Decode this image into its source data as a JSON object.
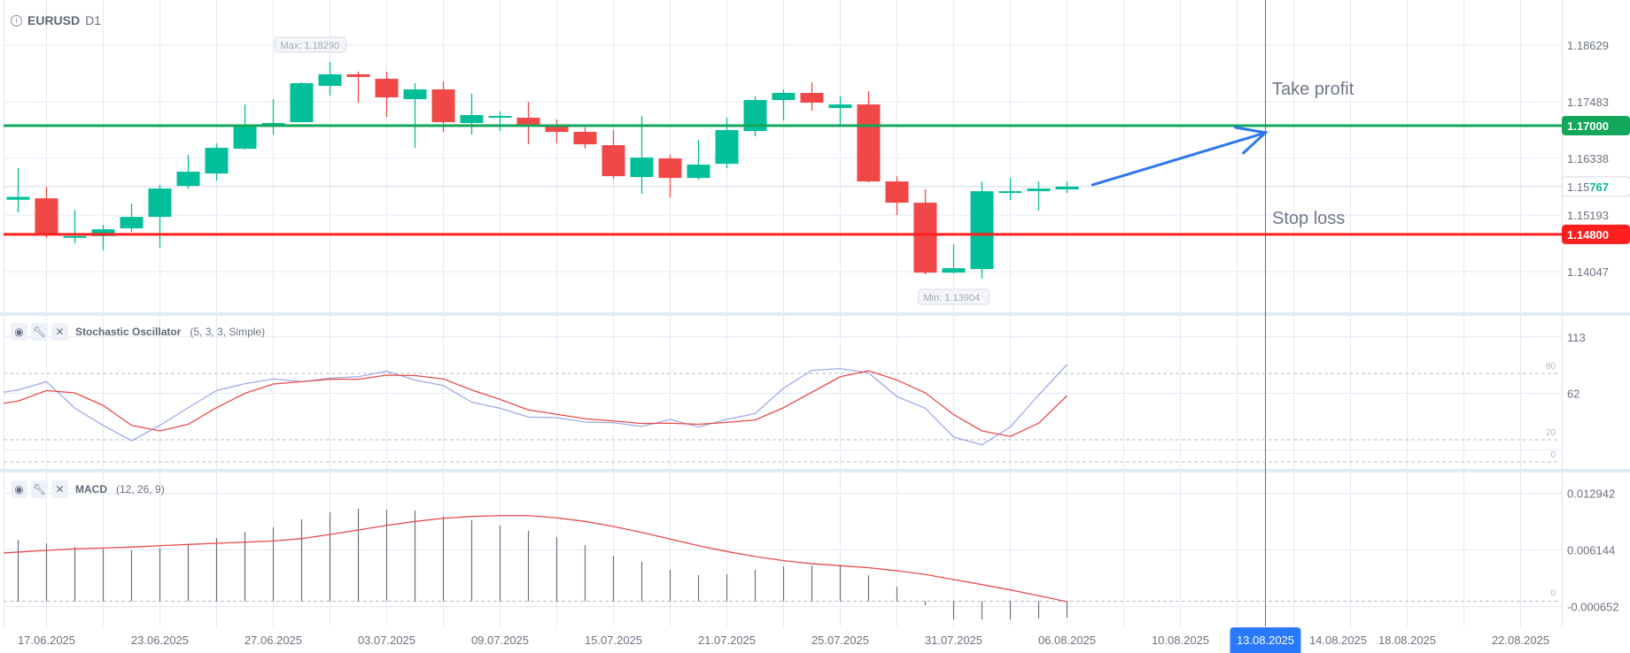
{
  "header": {
    "symbol": "EURUSD",
    "timeframe": "D1",
    "icon": "info-icon"
  },
  "colors": {
    "bull": "#02bf99",
    "bear": "#f04747",
    "take_profit": "#12a75a",
    "stop_loss": "#ff1f1f",
    "arrow": "#2b78f0",
    "crosshair": "#2f6df0",
    "stoch_k": "#9eaae6",
    "stoch_d": "#e84c4c",
    "macd_bars": "#6b7080",
    "signal": "#e84c4c",
    "grid": "#e3e9f5",
    "separator": "#e2e9f7"
  },
  "chart_data": {
    "type": "candlestick",
    "title": "EURUSD D1",
    "ylim": [
      1.13223,
      1.19542
    ],
    "candles": [
      [
        1.15501,
        1.16139,
        1.15244,
        1.1556
      ],
      [
        1.1553,
        1.15763,
        1.1473,
        1.14826
      ],
      [
        1.14742,
        1.15298,
        1.14617,
        1.14766
      ],
      [
        1.14766,
        1.14993,
        1.1448,
        1.14904
      ],
      [
        1.14922,
        1.15423,
        1.1485,
        1.15154
      ],
      [
        1.15154,
        1.15799,
        1.14533,
        1.15727
      ],
      [
        1.15781,
        1.16408,
        1.15727,
        1.16068
      ],
      [
        1.16032,
        1.16641,
        1.15889,
        1.16551
      ],
      [
        1.16533,
        1.17429,
        1.16516,
        1.16975
      ],
      [
        1.16975,
        1.17536,
        1.1682,
        1.17053
      ],
      [
        1.17071,
        1.17877,
        1.17071,
        1.17859
      ],
      [
        1.17805,
        1.1829,
        1.17608,
        1.18038
      ],
      [
        1.18038,
        1.18092,
        1.17465,
        1.17984
      ],
      [
        1.17948,
        1.18092,
        1.17178,
        1.17572
      ],
      [
        1.17536,
        1.17859,
        1.16551,
        1.17733
      ],
      [
        1.17733,
        1.17895,
        1.16874,
        1.17071
      ],
      [
        1.17053,
        1.17644,
        1.1682,
        1.17214
      ],
      [
        1.17178,
        1.17286,
        1.16892,
        1.17196
      ],
      [
        1.1716,
        1.17483,
        1.16623,
        1.16999
      ],
      [
        1.16999,
        1.17124,
        1.16641,
        1.16874
      ],
      [
        1.16874,
        1.16963,
        1.16533,
        1.16623
      ],
      [
        1.16605,
        1.1691,
        1.15924,
        1.15978
      ],
      [
        1.1596,
        1.17196,
        1.1562,
        1.16354
      ],
      [
        1.16336,
        1.16408,
        1.15548,
        1.15942
      ],
      [
        1.15942,
        1.16713,
        1.15907,
        1.16211
      ],
      [
        1.16229,
        1.1716,
        1.16139,
        1.1691
      ],
      [
        1.16892,
        1.1759,
        1.16784,
        1.17518
      ],
      [
        1.17518,
        1.17733,
        1.17107,
        1.17662
      ],
      [
        1.17662,
        1.17877,
        1.17304,
        1.17465
      ],
      [
        1.17357,
        1.1759,
        1.17017,
        1.17429
      ],
      [
        1.17429,
        1.17698,
        1.15853,
        1.15871
      ],
      [
        1.15871,
        1.15978,
        1.1519,
        1.15441
      ],
      [
        1.15441,
        1.1571,
        1.1399,
        1.14026
      ],
      [
        1.14026,
        1.14599,
        1.14008,
        1.14116
      ],
      [
        1.14098,
        1.15871,
        1.13904,
        1.15674
      ],
      [
        1.15656,
        1.15942,
        1.15495,
        1.15674
      ],
      [
        1.15674,
        1.15871,
        1.1528,
        1.15727
      ],
      [
        1.1571,
        1.15871,
        1.15638,
        1.15767
      ]
    ],
    "price_ticks": [
      {
        "value": 1.18629,
        "label": "1.18629"
      },
      {
        "value": 1.17483,
        "label": "1.17483"
      },
      {
        "value": 1.16338,
        "label": "1.16338"
      },
      {
        "value": 1.15193,
        "label": "1.15193"
      },
      {
        "value": 1.14047,
        "label": "1.14047"
      }
    ],
    "max_marker": {
      "index": 11,
      "value": 1.1829,
      "label": "Max: 1.18290"
    },
    "min_marker": {
      "index": 34,
      "value": 1.13904,
      "label": "Min: 1.13904"
    },
    "current_price": {
      "value": 1.15767,
      "label_prefix": "1.15",
      "label_suffix": "767"
    },
    "levels": [
      {
        "name": "take-profit",
        "text": "Take profit",
        "value": 1.17,
        "label": "1.17000"
      },
      {
        "name": "stop-loss",
        "text": "Stop loss",
        "value": 1.148,
        "label": "1.14800"
      }
    ],
    "arrow": {
      "from": {
        "index": 37.9,
        "value": 1.15801
      },
      "to": {
        "index": 44,
        "value": 1.16857
      }
    },
    "crosshair": {
      "index": 44,
      "label": "13.08.2025"
    },
    "x_labels": [
      {
        "index": 1,
        "label": "17.06.2025"
      },
      {
        "index": 5,
        "label": "23.06.2025"
      },
      {
        "index": 9,
        "label": "27.06.2025"
      },
      {
        "index": 13,
        "label": "03.07.2025"
      },
      {
        "index": 17,
        "label": "09.07.2025"
      },
      {
        "index": 21,
        "label": "15.07.2025"
      },
      {
        "index": 25,
        "label": "21.07.2025"
      },
      {
        "index": 29,
        "label": "25.07.2025"
      },
      {
        "index": 33,
        "label": "31.07.2025"
      },
      {
        "index": 37,
        "label": "06.08.2025"
      },
      {
        "index": 41,
        "label": "10.08.2025"
      },
      {
        "index": 45,
        "label": "14.08.2025"
      },
      {
        "index": 49,
        "label": "18.08.2025"
      },
      {
        "index": 53,
        "label": "22.08.2025"
      }
    ],
    "stochastic": {
      "title": "Stochastic Oscillator",
      "params": "(5, 3, 3, Simple)",
      "ylim": [
        -6.4,
        132
      ],
      "ticks": [
        {
          "value": 113,
          "label": "113"
        },
        {
          "value": 62,
          "label": "62"
        }
      ],
      "levels": [
        {
          "value": 80,
          "label": "80"
        },
        {
          "value": 20,
          "label": "20"
        },
        {
          "value": 0,
          "label": "0"
        }
      ],
      "k": [
        65,
        72.5,
        48.5,
        33,
        19,
        33,
        49,
        64.5,
        70.7,
        75,
        72.5,
        75.7,
        77,
        82,
        74,
        69,
        54,
        48.5,
        40.5,
        40,
        36,
        35.5,
        32,
        38.4,
        31.5,
        38.4,
        43.7,
        66.7,
        82.7,
        84.3,
        80.5,
        59,
        48.5,
        22.4,
        15.5,
        31.5,
        60.5,
        88
      ],
      "d": [
        55,
        64.5,
        62.4,
        51,
        33,
        28,
        34,
        49,
        62,
        70.4,
        72.5,
        74.7,
        74.7,
        78.4,
        78,
        75,
        65,
        56.5,
        47,
        43,
        39,
        37,
        34.7,
        35,
        34,
        35.7,
        37.9,
        49,
        63,
        77,
        82.4,
        74,
        62.4,
        42.7,
        28,
        23,
        35,
        59.7
      ]
    },
    "macd": {
      "title": "MACD",
      "params": "(12, 26, 9)",
      "ylim": [
        -0.003027,
        0.015456
      ],
      "ticks": [
        {
          "value": 0.012942,
          "label": "0.012942"
        },
        {
          "value": 0.006144,
          "label": "0.006144"
        },
        {
          "value": -0.000652,
          "label": "-0.000652"
        }
      ],
      "zero_label": "0",
      "macd": [
        0.00738,
        0.00696,
        0.0065,
        0.00625,
        0.00611,
        0.00639,
        0.00678,
        0.0076,
        0.00834,
        0.00887,
        0.00983,
        0.01068,
        0.0111,
        0.01099,
        0.01089,
        0.01022,
        0.00972,
        0.00908,
        0.00845,
        0.0077,
        0.00675,
        0.00547,
        0.00473,
        0.00377,
        0.00313,
        0.00324,
        0.00377,
        0.0042,
        0.0043,
        0.00438,
        0.00313,
        0.00175,
        -0.00048,
        -0.00218,
        -0.00218,
        -0.00218,
        -0.00207,
        -0.00197
      ],
      "signal": [
        0.0059,
        0.00611,
        0.00629,
        0.00639,
        0.0065,
        0.00667,
        0.00682,
        0.00696,
        0.0071,
        0.00724,
        0.00752,
        0.00802,
        0.00855,
        0.00911,
        0.00958,
        0.00996,
        0.01018,
        0.01028,
        0.01028,
        0.01001,
        0.00958,
        0.00898,
        0.00826,
        0.00746,
        0.00667,
        0.00597,
        0.00536,
        0.00487,
        0.00451,
        0.00427,
        0.00402,
        0.00366,
        0.00321,
        0.0026,
        0.002,
        0.00136,
        0.00066,
        -5e-05
      ]
    }
  }
}
